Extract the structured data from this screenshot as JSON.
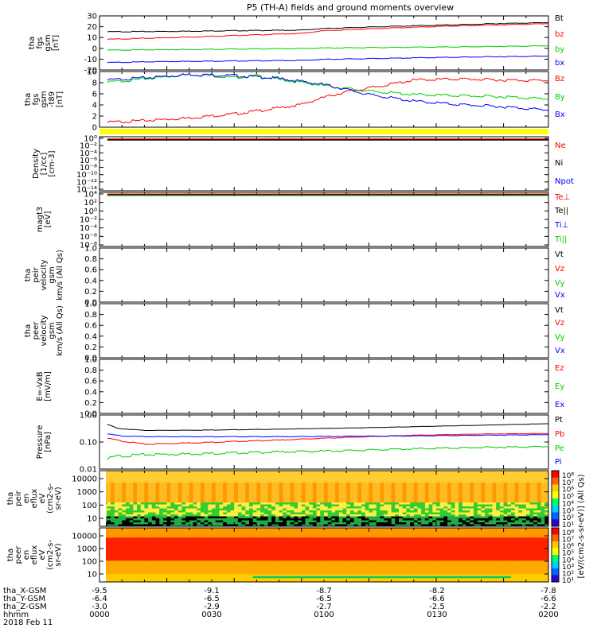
{
  "title": "P5 (TH-A) fields and ground moments overview",
  "chart_data": [
    {
      "type": "line",
      "ylabel": [
        "tha",
        "fgs",
        "gsm",
        "[nT]"
      ],
      "ylim": [
        -20,
        30
      ],
      "yticks": [
        -20,
        -10,
        0,
        10,
        20,
        30
      ],
      "legend": [
        {
          "name": "Bt",
          "color": "#000000"
        },
        {
          "name": "bz",
          "color": "#ff0000"
        },
        {
          "name": "by",
          "color": "#00cc00"
        },
        {
          "name": "bx",
          "color": "#0000ff"
        }
      ],
      "series": [
        {
          "name": "Bt",
          "color": "#000000",
          "t": [
            3.5,
            30,
            60,
            90,
            100,
            130,
            160,
            180,
            200
          ],
          "values": [
            15.5,
            15.8,
            16.5,
            17.0,
            18.5,
            20.5,
            22.0,
            23.2,
            24.0
          ]
        },
        {
          "name": "bz",
          "color": "#ff0000",
          "t": [
            3.5,
            30,
            60,
            90,
            100,
            130,
            160,
            180,
            200
          ],
          "values": [
            8.5,
            10.0,
            12.0,
            14.0,
            16.5,
            19.0,
            21.0,
            22.0,
            23.0
          ]
        },
        {
          "name": "by",
          "color": "#00cc00",
          "t": [
            3.5,
            30,
            60,
            90,
            100,
            130,
            160,
            180,
            200
          ],
          "values": [
            -1.5,
            -1.0,
            -0.5,
            0.0,
            0.5,
            1.0,
            1.5,
            2.0,
            2.5
          ]
        },
        {
          "name": "bx",
          "color": "#0000ff",
          "t": [
            3.5,
            30,
            60,
            90,
            100,
            130,
            160,
            180,
            200
          ],
          "values": [
            -13.0,
            -12.0,
            -11.5,
            -11.0,
            -10.0,
            -9.0,
            -8.0,
            -7.5,
            -7.0
          ]
        }
      ]
    },
    {
      "type": "line",
      "ylabel": [
        "tha",
        "fgs",
        "gsm",
        "-t89",
        "[nT]"
      ],
      "ylim": [
        0,
        10
      ],
      "yticks": [
        0,
        2,
        4,
        6,
        8,
        10
      ],
      "legend": [
        {
          "name": "Bz",
          "color": "#ff0000"
        },
        {
          "name": "By",
          "color": "#00cc00"
        },
        {
          "name": "Bx",
          "color": "#0000ff"
        }
      ],
      "series": [
        {
          "name": "Bz",
          "color": "#ff0000",
          "t": [
            3.5,
            20,
            40,
            60,
            75,
            90,
            100,
            110,
            125,
            140,
            160,
            180,
            200
          ],
          "values": [
            1.0,
            1.3,
            1.8,
            2.5,
            3.3,
            4.2,
            5.5,
            6.5,
            7.5,
            8.6,
            8.8,
            8.6,
            8.5
          ]
        },
        {
          "name": "By",
          "color": "#00cc00",
          "t": [
            3.5,
            20,
            40,
            50,
            60,
            70,
            80,
            100,
            120,
            140,
            160,
            180,
            200
          ],
          "values": [
            8.2,
            8.8,
            9.6,
            9.4,
            9.0,
            9.4,
            8.7,
            7.6,
            6.6,
            6.0,
            5.8,
            5.6,
            5.2
          ]
        },
        {
          "name": "Bx",
          "color": "#0000ff",
          "t": [
            3.5,
            20,
            40,
            60,
            80,
            100,
            120,
            140,
            160,
            180,
            200
          ],
          "values": [
            8.6,
            9.0,
            9.6,
            9.4,
            8.9,
            7.8,
            6.0,
            4.8,
            4.2,
            3.8,
            3.2
          ]
        }
      ]
    },
    {
      "type": "line",
      "ylabel": [
        "Density",
        "[1/cc]",
        "[cm-3]"
      ],
      "ylog": true,
      "yticks": [
        "10⁰",
        "10⁻²",
        "10⁻⁴",
        "10⁻⁶",
        "10⁻⁸",
        "10⁻¹⁰",
        "10⁻¹²",
        "10⁻¹⁴"
      ],
      "legend": [
        {
          "name": "Ne",
          "color": "#ff0000"
        },
        {
          "name": "Ni",
          "color": "#000000"
        },
        {
          "name": "Npot",
          "color": "#0000ff"
        }
      ],
      "series": [
        {
          "name": "Ne",
          "color": "#ff0000",
          "approx_value": "1"
        },
        {
          "name": "Ni",
          "color": "#000000",
          "approx_value": "1"
        }
      ]
    },
    {
      "type": "line",
      "ylabel": [
        "magt3",
        "[eV]"
      ],
      "ylog": true,
      "yticks": [
        "10⁴",
        "10²",
        "10⁰",
        "10⁻²",
        "10⁻⁴",
        "10⁻⁶",
        "10⁻⁸"
      ],
      "legend": [
        {
          "name": "Te⊥",
          "color": "#ff0000"
        },
        {
          "name": "Te||",
          "color": "#000000"
        },
        {
          "name": "Ti⊥",
          "color": "#0000ff"
        },
        {
          "name": "Ti||",
          "color": "#00cc00"
        }
      ]
    },
    {
      "type": "line",
      "ylabel": [
        "tha",
        "peir",
        "velocity",
        "gsm",
        "km/s (All Qs)"
      ],
      "ylim": [
        0,
        1
      ],
      "yticks": [
        "0.0",
        "0.2",
        "0.4",
        "0.6",
        "0.8",
        "1.0"
      ],
      "legend": [
        {
          "name": "Vt",
          "color": "#000000"
        },
        {
          "name": "Vz",
          "color": "#ff0000"
        },
        {
          "name": "Vy",
          "color": "#00cc00"
        },
        {
          "name": "Vx",
          "color": "#0000ff"
        }
      ]
    },
    {
      "type": "line",
      "ylabel": [
        "tha",
        "peer",
        "velocity",
        "gsm",
        "km/s (All Qs)"
      ],
      "ylim": [
        0,
        1
      ],
      "yticks": [
        "0.0",
        "0.2",
        "0.4",
        "0.6",
        "0.8",
        "1.0"
      ],
      "legend": [
        {
          "name": "Vt",
          "color": "#000000"
        },
        {
          "name": "Vz",
          "color": "#ff0000"
        },
        {
          "name": "Vy",
          "color": "#00cc00"
        },
        {
          "name": "Vx",
          "color": "#0000ff"
        }
      ]
    },
    {
      "type": "line",
      "ylabel": [
        "E=-VxB",
        "[mV/m]"
      ],
      "ylim": [
        0,
        1
      ],
      "yticks": [
        "0.0",
        "0.2",
        "0.4",
        "0.6",
        "0.8",
        "1.0"
      ],
      "legend": [
        {
          "name": "Ez",
          "color": "#ff0000"
        },
        {
          "name": "Ey",
          "color": "#00cc00"
        },
        {
          "name": "Ex",
          "color": "#0000ff"
        }
      ]
    },
    {
      "type": "line",
      "ylabel": [
        "Pressure",
        "[nPa]"
      ],
      "ylog": true,
      "ylim": [
        0.01,
        1
      ],
      "yticks": [
        "1.00",
        "0.10",
        "0.01"
      ],
      "legend": [
        {
          "name": "Pt",
          "color": "#000000"
        },
        {
          "name": "Pb",
          "color": "#ff0000"
        },
        {
          "name": "Pe",
          "color": "#00cc00"
        },
        {
          "name": "Pi",
          "color": "#0000ff"
        }
      ],
      "series": [
        {
          "name": "Pt",
          "color": "#000000",
          "t": [
            3.5,
            8,
            20,
            50,
            80,
            110,
            140,
            170,
            200
          ],
          "values": [
            0.45,
            0.32,
            0.27,
            0.28,
            0.3,
            0.33,
            0.37,
            0.42,
            0.48
          ]
        },
        {
          "name": "Pb",
          "color": "#ff0000",
          "t": [
            3.5,
            10,
            20,
            50,
            80,
            110,
            140,
            170,
            200
          ],
          "values": [
            0.14,
            0.11,
            0.085,
            0.1,
            0.12,
            0.15,
            0.18,
            0.2,
            0.21
          ]
        },
        {
          "name": "Pe",
          "color": "#00cc00",
          "t": [
            3.5,
            8,
            20,
            50,
            80,
            110,
            140,
            170,
            200
          ],
          "values": [
            0.025,
            0.032,
            0.036,
            0.04,
            0.045,
            0.05,
            0.058,
            0.065,
            0.07
          ]
        },
        {
          "name": "Pi",
          "color": "#0000ff",
          "t": [
            3.5,
            10,
            20,
            50,
            80,
            110,
            140,
            170,
            200
          ],
          "values": [
            0.2,
            0.17,
            0.16,
            0.16,
            0.16,
            0.165,
            0.17,
            0.18,
            0.19
          ]
        }
      ]
    },
    {
      "type": "heatmap",
      "ylabel": [
        "tha",
        "peir",
        "en",
        "eflux",
        "eV",
        "(cm2-s-",
        "sr-eV)"
      ],
      "ylog": true,
      "yticks": [
        "10000",
        "1000",
        "100",
        "10"
      ],
      "colorbar_ticks": [
        "10⁸",
        "10⁷",
        "10⁶",
        "10⁵",
        "10⁴",
        "10³",
        "10²",
        "10¹"
      ],
      "colorbar_label": "[eV/(cm2-s-sr-eV)] (All Qs)"
    },
    {
      "type": "heatmap",
      "ylabel": [
        "tha",
        "peer",
        "en",
        "eflux",
        "eV",
        "(cm2-s-",
        "sr-eV)"
      ],
      "ylog": true,
      "yticks": [
        "10000",
        "1000",
        "100",
        "10"
      ],
      "colorbar_ticks": [
        "10⁸",
        "10⁷",
        "10⁶",
        "10⁵",
        "10⁴",
        "10³",
        "10²",
        "10¹"
      ],
      "colorbar_label": "[eV/(cm2-s-sr-eV)] (All Qs)"
    }
  ],
  "x_axis": {
    "rows": [
      {
        "label": "tha_X-GSM",
        "values": [
          "-9.5",
          "-9.1",
          "-8.7",
          "-8.2",
          "-7.8"
        ]
      },
      {
        "label": "tha_Y-GSM",
        "values": [
          "-6.4",
          "-6.5",
          "-6.5",
          "-6.6",
          "-6.6"
        ]
      },
      {
        "label": "tha_Z-GSM",
        "values": [
          "-3.0",
          "-2.9",
          "-2.7",
          "-2.5",
          "-2.2"
        ]
      },
      {
        "label": "hhmm",
        "values": [
          "0000",
          "0030",
          "0100",
          "0130",
          "0200"
        ]
      }
    ],
    "date": "2018 Feb 11"
  }
}
